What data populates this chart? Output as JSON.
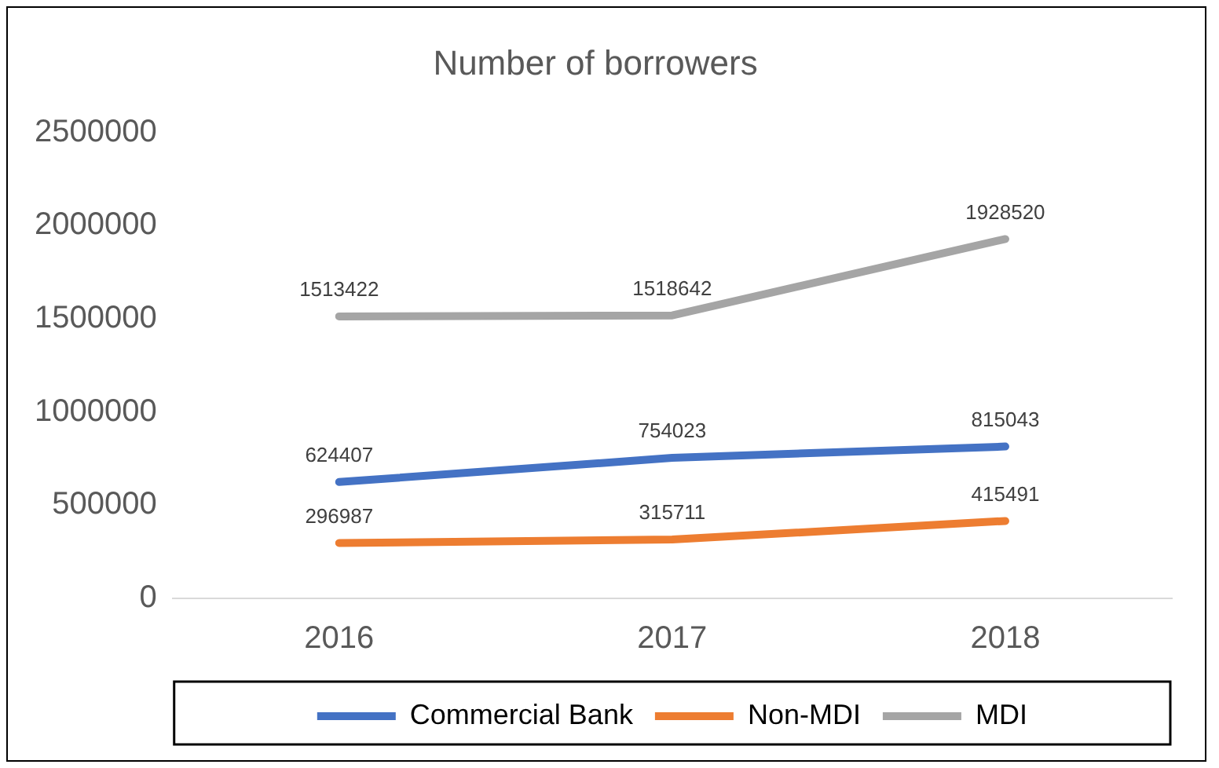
{
  "chart_data": {
    "type": "line",
    "title": "Number of borrowers",
    "categories": [
      "2016",
      "2017",
      "2018"
    ],
    "series": [
      {
        "name": "Commercial Bank",
        "color": "#4472c4",
        "values": [
          624407,
          754023,
          815043
        ]
      },
      {
        "name": "Non-MDI",
        "color": "#ed7d31",
        "values": [
          296987,
          315711,
          415491
        ]
      },
      {
        "name": "MDI",
        "color": "#a5a5a5",
        "values": [
          1513422,
          1518642,
          1928520
        ]
      }
    ],
    "ylim": [
      0,
      2500000
    ],
    "yticks": [
      0,
      500000,
      1000000,
      1500000,
      2000000,
      2500000
    ],
    "grid": false,
    "legend": "bottom",
    "marker": "none",
    "line_style": "solid",
    "data_labels": true
  }
}
